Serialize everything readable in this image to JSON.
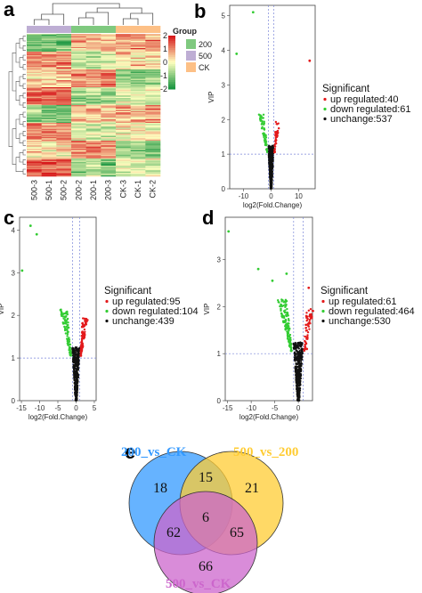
{
  "panels": {
    "a": "a",
    "b": "b",
    "c": "c",
    "d": "d",
    "e": "e"
  },
  "colors": {
    "up": "#e31a1c",
    "down": "#33cc33",
    "unchange": "#111111",
    "threshold": "#7a86d9",
    "heat_low": "#1a9641",
    "heat_mid": "#ffffbf",
    "heat_high": "#d7191c",
    "group_200": "#7fc97f",
    "group_500": "#beaed4",
    "group_CK": "#fdc086",
    "venn_200_vs_CK": "#3399ff",
    "venn_500_vs_200": "#ffcc33",
    "venn_500_vs_CK": "#cc66cc"
  },
  "chart_data": [
    {
      "type": "heatmap",
      "panel": "a",
      "columns": [
        "500-3",
        "500-1",
        "500-2",
        "200-2",
        "200-1",
        "200-3",
        "CK-3",
        "CK-1",
        "CK-2"
      ],
      "column_groups": [
        "500",
        "500",
        "500",
        "200",
        "200",
        "200",
        "CK",
        "CK",
        "CK"
      ],
      "legend_title": "Group",
      "legend_groups": [
        "200",
        "500",
        "CK"
      ],
      "color_scale_ticks": [
        2,
        1,
        0,
        -1,
        -2
      ],
      "value_range": [
        -2,
        2
      ],
      "rows": 120
    },
    {
      "type": "scatter",
      "panel": "b",
      "xlabel": "log2(Fold.Change)",
      "ylabel": "VIP",
      "xlim": [
        -15,
        16
      ],
      "ylim": [
        0,
        5.3
      ],
      "xticks": [
        -10,
        0,
        10
      ],
      "yticks": [
        0,
        1,
        2,
        3,
        4,
        5
      ],
      "vlines": [
        -1,
        1
      ],
      "hline": 1,
      "legend_title": "Significant",
      "legend": [
        "up regulated:40",
        "down regulated:61",
        "unchange:537"
      ],
      "series": [
        {
          "name": "up regulated",
          "count": 40
        },
        {
          "name": "down regulated",
          "count": 61
        },
        {
          "name": "unchange",
          "count": 537
        }
      ],
      "outliers": [
        [
          -6.5,
          5.1
        ],
        [
          -12.5,
          3.9
        ],
        [
          14,
          3.7
        ]
      ]
    },
    {
      "type": "scatter",
      "panel": "c",
      "xlabel": "log2(Fold.Change)",
      "ylabel": "VIP",
      "xlim": [
        -15.5,
        5.5
      ],
      "ylim": [
        0,
        4.3
      ],
      "xticks": [
        -15,
        -10,
        -5,
        0,
        5
      ],
      "yticks": [
        0,
        1,
        2,
        3,
        4
      ],
      "vlines": [
        -1,
        1
      ],
      "hline": 1,
      "legend_title": "Significant",
      "legend": [
        "up regulated:95",
        "down regulated:104",
        "unchange:439"
      ],
      "series": [
        {
          "name": "up regulated",
          "count": 95
        },
        {
          "name": "down regulated",
          "count": 104
        },
        {
          "name": "unchange",
          "count": 439
        }
      ],
      "outliers": [
        [
          -12.5,
          4.1
        ],
        [
          -10.8,
          3.9
        ],
        [
          -14.8,
          3.05
        ]
      ]
    },
    {
      "type": "scatter",
      "panel": "d",
      "xlabel": "log2(Fold.Change)",
      "ylabel": "VIP",
      "xlim": [
        -15.5,
        3
      ],
      "ylim": [
        0,
        3.9
      ],
      "xticks": [
        -15,
        -10,
        -5,
        0
      ],
      "yticks": [
        0,
        1,
        2,
        3
      ],
      "vlines": [
        -1,
        1
      ],
      "hline": 1,
      "legend_title": "Significant",
      "legend": [
        "up regulated:61",
        "down regulated:464",
        "unchange:530"
      ],
      "series": [
        {
          "name": "up regulated",
          "count": 61
        },
        {
          "name": "down regulated",
          "count": 464
        },
        {
          "name": "unchange",
          "count": 530
        }
      ],
      "outliers": [
        [
          -14.8,
          3.6
        ],
        [
          -8.5,
          2.8
        ],
        [
          -5.5,
          2.55
        ],
        [
          -2.5,
          2.7
        ],
        [
          2.2,
          2.4
        ],
        [
          1.8,
          1.1
        ]
      ]
    },
    {
      "type": "venn",
      "panel": "e",
      "sets": [
        "200_vs_CK",
        "500_vs_200",
        "500_vs_CK"
      ],
      "regions": {
        "only_200_vs_CK": 18,
        "only_500_vs_200": 21,
        "only_500_vs_CK": 66,
        "200_vs_CK_and_500_vs_200": 15,
        "200_vs_CK_and_500_vs_CK": 62,
        "500_vs_200_and_500_vs_CK": 65,
        "all_three": 6
      }
    }
  ]
}
